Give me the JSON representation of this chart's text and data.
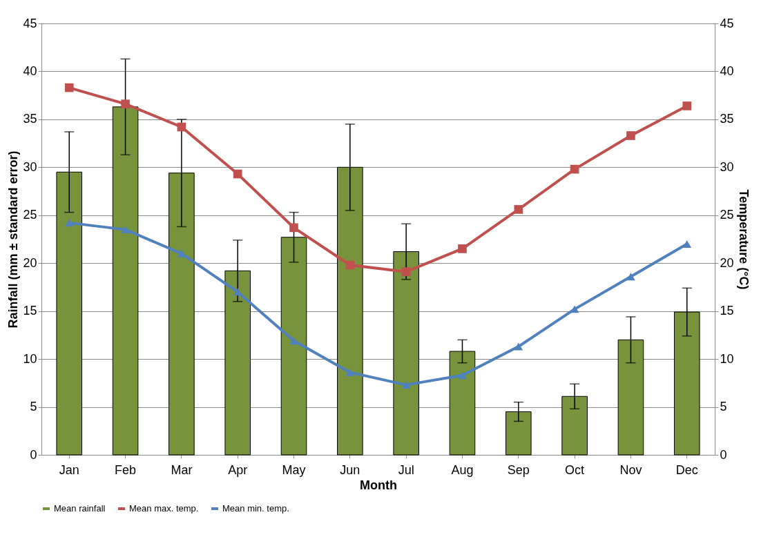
{
  "chart_data": {
    "type": "bar",
    "xlabel": "Month",
    "ylabel": "Rainfall  (mm ± standard error)",
    "y2label": "Temperature (°C)",
    "categories": [
      "Jan",
      "Feb",
      "Mar",
      "Apr",
      "May",
      "Jun",
      "Jul",
      "Aug",
      "Sep",
      "Oct",
      "Nov",
      "Dec"
    ],
    "series": [
      {
        "name": "Mean rainfall",
        "color": "#77933c",
        "values": [
          29.5,
          36.3,
          29.4,
          19.2,
          22.7,
          30.0,
          21.2,
          10.8,
          4.5,
          6.1,
          12.0,
          14.9
        ],
        "errors": [
          4.2,
          5.0,
          5.6,
          3.2,
          2.6,
          4.5,
          2.9,
          1.2,
          1.0,
          1.3,
          2.4,
          2.5
        ]
      },
      {
        "name": "Mean max. temp.",
        "type": "line",
        "axis": "y2",
        "marker": "square",
        "color": "#c0504d",
        "values": [
          38.3,
          36.6,
          34.2,
          29.3,
          23.7,
          19.8,
          19.1,
          21.5,
          25.6,
          29.8,
          33.3,
          36.4
        ]
      },
      {
        "name": "Mean min. temp.",
        "type": "line",
        "axis": "y2",
        "marker": "triangle",
        "color": "#4f81bd",
        "values": [
          24.2,
          23.5,
          21.0,
          17.0,
          11.9,
          8.6,
          7.3,
          8.3,
          11.3,
          15.2,
          18.6,
          22.0
        ]
      }
    ],
    "ylim": [
      0,
      45
    ],
    "yticks": [
      0,
      5,
      10,
      15,
      20,
      25,
      30,
      35,
      40,
      45
    ],
    "y2lim": [
      0,
      45
    ],
    "y2ticks": [
      0,
      5,
      10,
      15,
      20,
      25,
      30,
      35,
      40,
      45
    ],
    "grid": "y",
    "legend": "bottom",
    "line_style": "solid"
  }
}
